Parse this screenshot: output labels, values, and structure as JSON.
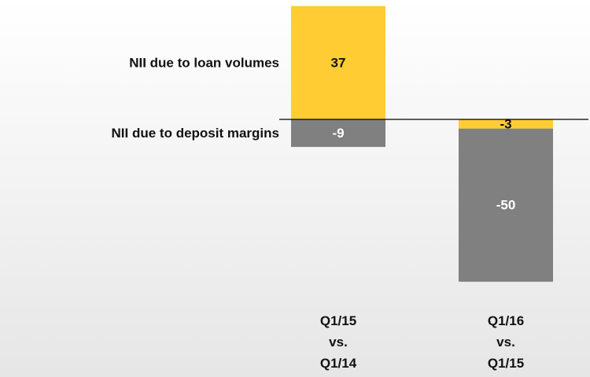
{
  "chart_data": {
    "type": "stacked_bar",
    "categories": [
      "Q1/15 vs. Q1/14",
      "Q1/16 vs. Q1/15"
    ],
    "series": [
      {
        "name": "NII due to loan volumes",
        "color": "#ffcc33",
        "values": [
          37,
          -3
        ]
      },
      {
        "name": "NII due to deposit margins",
        "color": "#808080",
        "values": [
          -9,
          -50
        ]
      }
    ]
  }
}
